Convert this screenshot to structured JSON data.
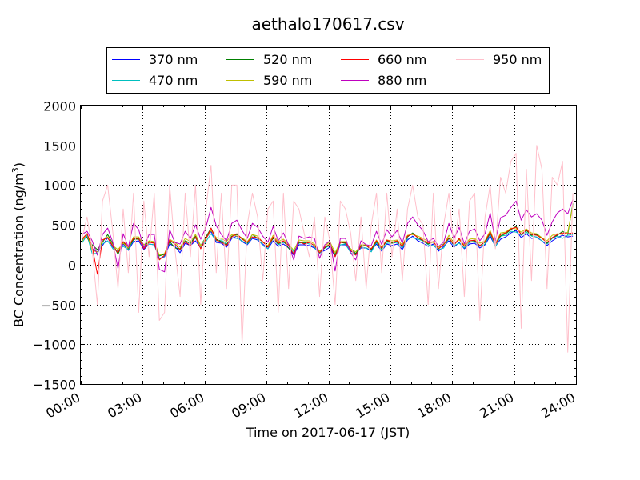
{
  "chart_data": {
    "type": "line",
    "title": "aethalo170617.csv",
    "xlabel": "Time on 2017-06-17 (JST)",
    "ylabel": "BC Concentration (ng/m",
    "ylabel_sup": "3",
    "ylabel_close": ")",
    "xlim": [
      "2017-06-17 00:00",
      "2017-06-18 00:00"
    ],
    "ylim": [
      -1500,
      2000
    ],
    "xticks": [
      "00:00",
      "03:00",
      "06:00",
      "09:00",
      "12:00",
      "15:00",
      "18:00",
      "21:00",
      "24:00"
    ],
    "yticks": [
      -1500,
      -1000,
      -500,
      0,
      500,
      1000,
      1500,
      2000
    ],
    "ytick_labels": [
      "−1500",
      "−1000",
      "−500",
      "0",
      "500",
      "1000",
      "1500",
      "2000"
    ],
    "grid": true,
    "legend_position": "top",
    "time_resolution_hours": 0.25,
    "series": [
      {
        "name": "370 nm",
        "color": "#0000ff",
        "values": [
          310,
          350,
          200,
          160,
          240,
          340,
          220,
          150,
          260,
          180,
          290,
          300,
          190,
          260,
          250,
          80,
          100,
          260,
          230,
          150,
          270,
          240,
          300,
          210,
          330,
          420,
          280,
          270,
          220,
          330,
          360,
          290,
          250,
          330,
          310,
          260,
          200,
          300,
          230,
          260,
          210,
          120,
          250,
          250,
          240,
          210,
          150,
          180,
          220,
          100,
          250,
          250,
          170,
          140,
          210,
          210,
          180,
          260,
          170,
          260,
          240,
          260,
          190,
          310,
          360,
          300,
          270,
          230,
          260,
          170,
          230,
          300,
          220,
          280,
          200,
          260,
          270,
          210,
          250,
          360,
          230,
          320,
          350,
          400,
          430,
          340,
          390,
          330,
          340,
          300,
          240,
          300,
          340,
          370,
          350,
          360
        ]
      },
      {
        "name": "470 nm",
        "color": "#00bfbf",
        "values": [
          270,
          370,
          140,
          140,
          260,
          300,
          200,
          170,
          230,
          190,
          310,
          340,
          220,
          260,
          250,
          70,
          110,
          300,
          260,
          180,
          300,
          260,
          340,
          210,
          290,
          390,
          300,
          310,
          260,
          340,
          330,
          300,
          260,
          340,
          330,
          240,
          200,
          340,
          250,
          280,
          250,
          160,
          270,
          280,
          260,
          220,
          140,
          210,
          240,
          130,
          250,
          260,
          150,
          120,
          220,
          210,
          160,
          280,
          180,
          270,
          270,
          280,
          210,
          330,
          340,
          320,
          300,
          250,
          240,
          190,
          210,
          330,
          240,
          270,
          210,
          280,
          290,
          230,
          260,
          390,
          220,
          360,
          370,
          420,
          410,
          370,
          410,
          360,
          350,
          300,
          260,
          330,
          360,
          330,
          370,
          380
        ]
      },
      {
        "name": "520 nm",
        "color": "#008000",
        "values": [
          330,
          340,
          250,
          190,
          280,
          380,
          260,
          130,
          290,
          200,
          320,
          320,
          230,
          290,
          270,
          110,
          130,
          290,
          210,
          200,
          300,
          270,
          360,
          240,
          350,
          460,
          320,
          290,
          250,
          360,
          380,
          330,
          270,
          380,
          330,
          290,
          230,
          330,
          260,
          300,
          210,
          140,
          280,
          270,
          280,
          240,
          170,
          210,
          260,
          120,
          280,
          270,
          200,
          140,
          240,
          240,
          190,
          290,
          200,
          300,
          270,
          290,
          230,
          350,
          400,
          340,
          300,
          260,
          290,
          200,
          260,
          330,
          250,
          320,
          230,
          300,
          300,
          240,
          280,
          400,
          270,
          360,
          390,
          440,
          480,
          380,
          430,
          370,
          380,
          340,
          270,
          340,
          370,
          420,
          380,
          770
        ]
      },
      {
        "name": "590 nm",
        "color": "#bfbf00",
        "values": [
          290,
          390,
          180,
          160,
          310,
          350,
          240,
          190,
          270,
          210,
          350,
          350,
          250,
          300,
          290,
          120,
          140,
          320,
          280,
          220,
          330,
          290,
          380,
          240,
          330,
          430,
          340,
          330,
          290,
          380,
          360,
          340,
          290,
          380,
          360,
          280,
          240,
          370,
          290,
          320,
          260,
          180,
          310,
          300,
          300,
          260,
          170,
          230,
          290,
          150,
          290,
          290,
          200,
          160,
          250,
          250,
          200,
          310,
          220,
          310,
          300,
          310,
          250,
          370,
          380,
          360,
          330,
          290,
          280,
          220,
          250,
          370,
          270,
          310,
          250,
          320,
          330,
          270,
          300,
          430,
          260,
          400,
          410,
          460,
          450,
          410,
          450,
          400,
          390,
          340,
          300,
          370,
          390,
          380,
          410,
          740
        ]
      },
      {
        "name": "660 nm",
        "color": "#ff0000",
        "values": [
          320,
          390,
          230,
          -120,
          310,
          340,
          230,
          150,
          290,
          230,
          330,
          330,
          200,
          280,
          270,
          60,
          120,
          310,
          260,
          190,
          290,
          240,
          350,
          200,
          320,
          460,
          310,
          280,
          240,
          350,
          390,
          320,
          280,
          350,
          340,
          290,
          220,
          350,
          270,
          300,
          240,
          130,
          290,
          260,
          280,
          240,
          150,
          220,
          260,
          100,
          280,
          280,
          180,
          120,
          230,
          240,
          200,
          300,
          210,
          310,
          280,
          300,
          230,
          360,
          390,
          340,
          310,
          270,
          290,
          200,
          250,
          340,
          250,
          330,
          230,
          300,
          310,
          240,
          290,
          410,
          250,
          380,
          400,
          450,
          470,
          380,
          440,
          380,
          370,
          330,
          280,
          340,
          380,
          400,
          390,
          400
        ]
      },
      {
        "name": "880 nm",
        "color": "#bf00bf",
        "values": [
          380,
          420,
          300,
          120,
          380,
          460,
          280,
          -50,
          390,
          220,
          520,
          440,
          210,
          380,
          380,
          -60,
          -90,
          440,
          280,
          260,
          420,
          330,
          500,
          320,
          470,
          720,
          490,
          380,
          300,
          520,
          560,
          430,
          330,
          520,
          470,
          360,
          280,
          480,
          300,
          400,
          250,
          60,
          360,
          330,
          350,
          330,
          80,
          250,
          300,
          -80,
          330,
          330,
          150,
          60,
          300,
          250,
          240,
          420,
          250,
          440,
          350,
          430,
          270,
          520,
          600,
          500,
          430,
          290,
          330,
          230,
          280,
          520,
          330,
          470,
          260,
          420,
          450,
          300,
          390,
          650,
          300,
          590,
          620,
          720,
          800,
          560,
          690,
          600,
          640,
          560,
          370,
          540,
          650,
          700,
          640,
          820
        ]
      },
      {
        "name": "950 nm",
        "color": "#ffc0cb",
        "values": [
          320,
          600,
          200,
          -500,
          800,
          1000,
          400,
          -300,
          700,
          -100,
          900,
          -600,
          800,
          100,
          900,
          -700,
          -600,
          1000,
          200,
          -400,
          900,
          100,
          1000,
          -500,
          700,
          1250,
          -100,
          900,
          -300,
          1000,
          1000,
          -1000,
          500,
          900,
          600,
          -200,
          700,
          800,
          -600,
          900,
          -300,
          800,
          700,
          400,
          100,
          600,
          -400,
          600,
          300,
          -500,
          800,
          700,
          400,
          -200,
          600,
          -300,
          500,
          900,
          -100,
          900,
          100,
          700,
          -200,
          700,
          1000,
          600,
          500,
          -500,
          900,
          -300,
          500,
          900,
          200,
          700,
          -400,
          800,
          900,
          -700,
          600,
          1000,
          200,
          1100,
          900,
          1300,
          1400,
          -800,
          1200,
          -200,
          1500,
          1200,
          -300,
          1100,
          1000,
          1300,
          -1100,
          900
        ]
      }
    ]
  }
}
